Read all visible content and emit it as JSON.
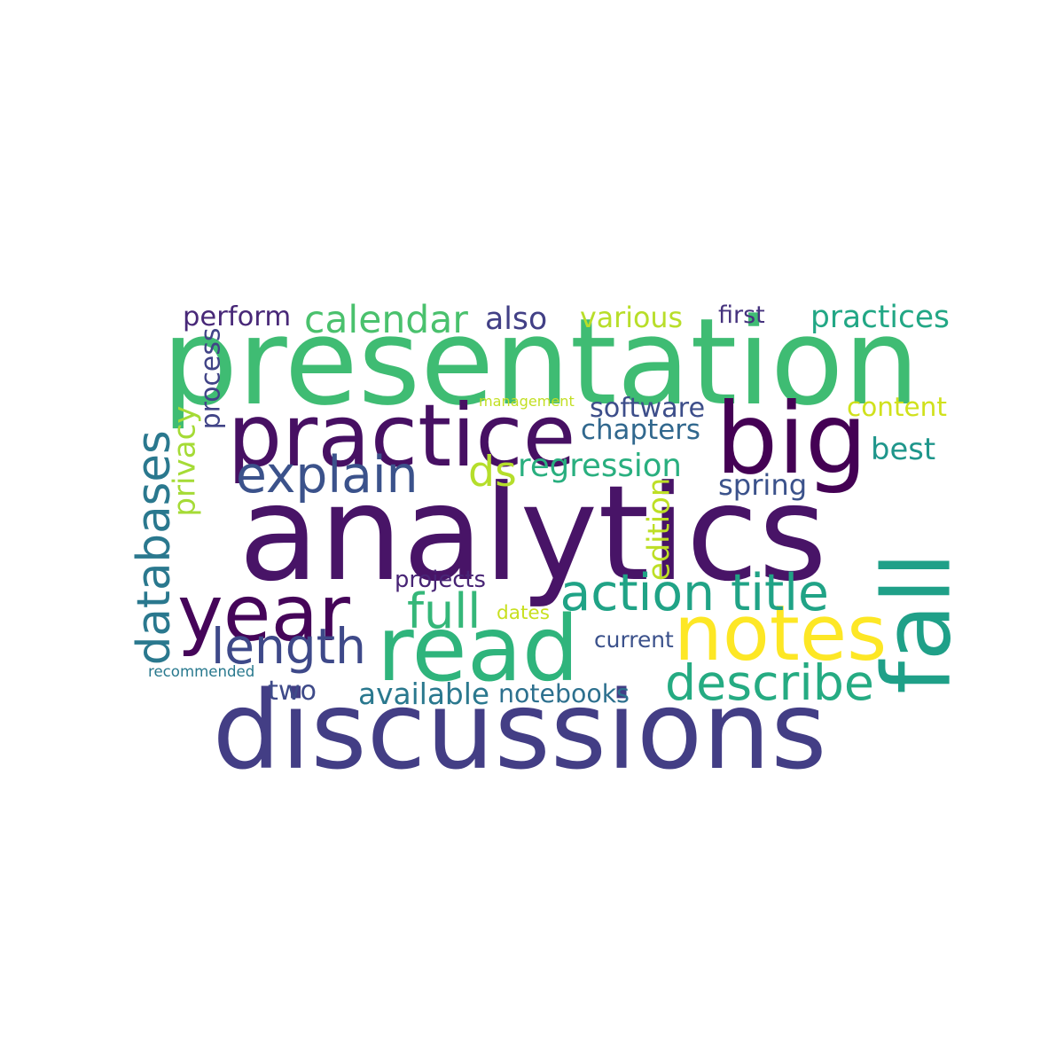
{
  "words": [
    {
      "text": "analytics",
      "color": "#481467"
    },
    {
      "text": "presentation",
      "color": "#3fbc73"
    },
    {
      "text": "discussions",
      "color": "#433e85"
    },
    {
      "text": "practice",
      "color": "#471063"
    },
    {
      "text": "big",
      "color": "#440154"
    },
    {
      "text": "read",
      "color": "#2fb47c"
    },
    {
      "text": "year",
      "color": "#450559"
    },
    {
      "text": "notes",
      "color": "#fde725"
    },
    {
      "text": "fall",
      "color": "#1fa088"
    },
    {
      "text": "explain",
      "color": "#3b528b"
    },
    {
      "text": "action title",
      "color": "#20a386"
    },
    {
      "text": "describe",
      "color": "#25ab82"
    },
    {
      "text": "databases",
      "color": "#2a788e"
    },
    {
      "text": "length",
      "color": "#3e4989"
    },
    {
      "text": "full",
      "color": "#35b779"
    },
    {
      "text": "ds",
      "color": "#b5de2b"
    },
    {
      "text": "calendar",
      "color": "#4ac16d"
    },
    {
      "text": "perform",
      "color": "#482878"
    },
    {
      "text": "practices",
      "color": "#22a785"
    },
    {
      "text": "regression",
      "color": "#29af7f"
    },
    {
      "text": "software",
      "color": "#3d4e8a"
    },
    {
      "text": "chapters",
      "color": "#31688e"
    },
    {
      "text": "best",
      "color": "#1f968b"
    },
    {
      "text": "content",
      "color": "#d0e11c"
    },
    {
      "text": "spring",
      "color": "#3b528b"
    },
    {
      "text": "various",
      "color": "#b8de29"
    },
    {
      "text": "also",
      "color": "#424086"
    },
    {
      "text": "available",
      "color": "#2a788e"
    },
    {
      "text": "notebooks",
      "color": "#2d708e"
    },
    {
      "text": "two",
      "color": "#3e4a89"
    },
    {
      "text": "privacy",
      "color": "#a5db36"
    },
    {
      "text": "process",
      "color": "#414487"
    },
    {
      "text": "edition",
      "color": "#bddf26"
    },
    {
      "text": "first",
      "color": "#46337e"
    },
    {
      "text": "current",
      "color": "#3b518b"
    },
    {
      "text": "projects",
      "color": "#482475"
    },
    {
      "text": "dates",
      "color": "#c8e020"
    },
    {
      "text": "recommended",
      "color": "#29798e"
    },
    {
      "text": "management",
      "color": "#c2df23"
    }
  ]
}
